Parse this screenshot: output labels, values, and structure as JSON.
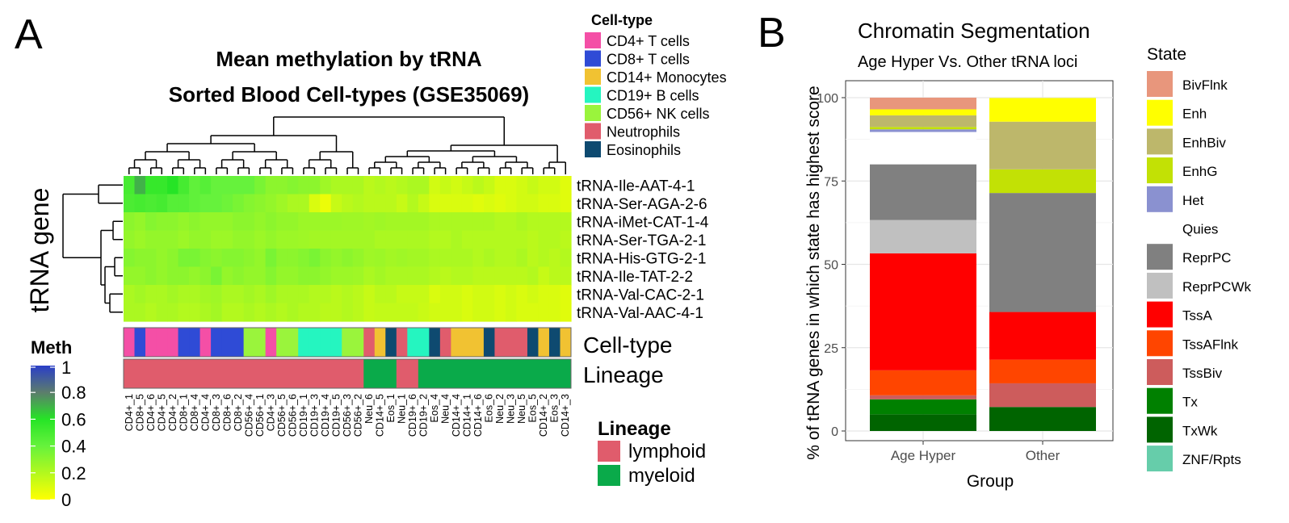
{
  "panel_a": {
    "letter": "A",
    "title_line1": "Mean methylation by tRNA",
    "title_line2": "Sorted Blood Cell-types (GSE35069)",
    "y_axis_title": "tRNA gene",
    "celltype_legend": {
      "title": "Cell-type",
      "items": [
        {
          "label": "CD4+ T cells",
          "color": "#f44fa6"
        },
        {
          "label": "CD8+ T cells",
          "color": "#2f4bd6"
        },
        {
          "label": "CD14+ Monocytes",
          "color": "#f1c232"
        },
        {
          "label": "CD19+ B cells",
          "color": "#25f5c0"
        },
        {
          "label": "CD56+ NK cells",
          "color": "#9af43c"
        },
        {
          "label": "Neutrophils",
          "color": "#e05c6c"
        },
        {
          "label": "Eosinophils",
          "color": "#0e4a70"
        }
      ]
    },
    "meth_legend": {
      "title": "Meth",
      "ticks": [
        "1",
        "0.8",
        "0.6",
        "0.4",
        "0.2",
        "0"
      ]
    },
    "lineage_legend": {
      "title": "Lineage",
      "items": [
        {
          "label": "lymphoid",
          "color": "#e05c6c"
        },
        {
          "label": "myeloid",
          "color": "#0aaa4a"
        }
      ]
    },
    "annotation_labels": {
      "celltype": "Cell-type",
      "lineage": "Lineage"
    }
  },
  "panel_b": {
    "letter": "B",
    "title": "Chromatin Segmentation",
    "subtitle": "Age Hyper Vs. Other tRNA loci",
    "legend_title": "State"
  },
  "chart_data": [
    {
      "type": "heatmap",
      "title": "Mean methylation by tRNA\nSorted Blood Cell-types (GSE35069)",
      "ylabel": "tRNA gene",
      "rows": [
        "tRNA-Ile-AAT-4-1",
        "tRNA-Ser-AGA-2-6",
        "tRNA-iMet-CAT-1-4",
        "tRNA-Ser-TGA-2-1",
        "tRNA-His-GTG-2-1",
        "tRNA-Ile-TAT-2-2",
        "tRNA-Val-CAC-2-1",
        "tRNA-Val-AAC-4-1"
      ],
      "columns": [
        "CD4+_1",
        "CD8+_5",
        "CD4+_6",
        "CD4+_5",
        "CD4+_2",
        "CD8+_1",
        "CD8+_4",
        "CD4+_4",
        "CD8+_3",
        "CD8+_6",
        "CD8+_2",
        "CD56+_4",
        "CD56+_1",
        "CD4+_3",
        "CD56+_5",
        "CD56+_6",
        "CD19+_1",
        "CD19+_3",
        "CD19+_4",
        "CD19+_5",
        "CD56+_3",
        "CD56+_2",
        "Neu_6",
        "CD14+_5",
        "Eos_1",
        "Neu_1",
        "CD19+_6",
        "CD19+_2",
        "Eos_4",
        "Neu_4",
        "CD14+_4",
        "CD14+_1",
        "CD14+_6",
        "Eos_6",
        "Neu_2",
        "Neu_3",
        "Neu_5",
        "Eos_5",
        "CD14+_2",
        "Eos_3",
        "CD14+_3"
      ],
      "column_celltypes": [
        "CD4+ T cells",
        "CD8+ T cells",
        "CD4+ T cells",
        "CD4+ T cells",
        "CD4+ T cells",
        "CD8+ T cells",
        "CD8+ T cells",
        "CD4+ T cells",
        "CD8+ T cells",
        "CD8+ T cells",
        "CD8+ T cells",
        "CD56+ NK cells",
        "CD56+ NK cells",
        "CD4+ T cells",
        "CD56+ NK cells",
        "CD56+ NK cells",
        "CD19+ B cells",
        "CD19+ B cells",
        "CD19+ B cells",
        "CD19+ B cells",
        "CD56+ NK cells",
        "CD56+ NK cells",
        "Neutrophils",
        "CD14+ Monocytes",
        "Eosinophils",
        "Neutrophils",
        "CD19+ B cells",
        "CD19+ B cells",
        "Eosinophils",
        "Neutrophils",
        "CD14+ Monocytes",
        "CD14+ Monocytes",
        "CD14+ Monocytes",
        "Eosinophils",
        "Neutrophils",
        "Neutrophils",
        "Neutrophils",
        "Eosinophils",
        "CD14+ Monocytes",
        "Eosinophils",
        "CD14+ Monocytes"
      ],
      "column_lineage": [
        "lymphoid",
        "lymphoid",
        "lymphoid",
        "lymphoid",
        "lymphoid",
        "lymphoid",
        "lymphoid",
        "lymphoid",
        "lymphoid",
        "lymphoid",
        "lymphoid",
        "lymphoid",
        "lymphoid",
        "lymphoid",
        "lymphoid",
        "lymphoid",
        "lymphoid",
        "lymphoid",
        "lymphoid",
        "lymphoid",
        "lymphoid",
        "lymphoid",
        "myeloid",
        "myeloid",
        "myeloid",
        "lymphoid",
        "lymphoid",
        "myeloid",
        "myeloid",
        "myeloid",
        "myeloid",
        "myeloid",
        "myeloid",
        "myeloid",
        "myeloid",
        "myeloid",
        "myeloid",
        "myeloid",
        "myeloid",
        "myeloid",
        "myeloid"
      ],
      "values": [
        [
          0.5,
          0.7,
          0.55,
          0.55,
          0.6,
          0.5,
          0.42,
          0.45,
          0.4,
          0.4,
          0.4,
          0.4,
          0.35,
          0.3,
          0.3,
          0.32,
          0.3,
          0.3,
          0.25,
          0.22,
          0.22,
          0.22,
          0.18,
          0.2,
          0.18,
          0.2,
          0.22,
          0.22,
          0.12,
          0.15,
          0.12,
          0.15,
          0.18,
          0.15,
          0.1,
          0.1,
          0.12,
          0.15,
          0.12,
          0.12,
          0.08
        ],
        [
          0.48,
          0.5,
          0.48,
          0.5,
          0.45,
          0.45,
          0.42,
          0.4,
          0.4,
          0.38,
          0.35,
          0.32,
          0.3,
          0.28,
          0.25,
          0.22,
          0.22,
          0.1,
          0.05,
          0.15,
          0.18,
          0.2,
          0.18,
          0.18,
          0.18,
          0.15,
          0.2,
          0.15,
          0.1,
          0.1,
          0.1,
          0.1,
          0.08,
          0.1,
          0.08,
          0.1,
          0.12,
          0.12,
          0.1,
          0.1,
          0.08
        ],
        [
          0.3,
          0.28,
          0.32,
          0.3,
          0.3,
          0.28,
          0.3,
          0.28,
          0.28,
          0.28,
          0.3,
          0.3,
          0.28,
          0.3,
          0.28,
          0.28,
          0.26,
          0.26,
          0.26,
          0.26,
          0.25,
          0.25,
          0.24,
          0.25,
          0.24,
          0.24,
          0.24,
          0.24,
          0.22,
          0.22,
          0.22,
          0.22,
          0.22,
          0.22,
          0.2,
          0.2,
          0.22,
          0.2,
          0.2,
          0.2,
          0.2
        ],
        [
          0.28,
          0.26,
          0.28,
          0.28,
          0.28,
          0.26,
          0.28,
          0.28,
          0.26,
          0.26,
          0.28,
          0.28,
          0.26,
          0.28,
          0.26,
          0.26,
          0.25,
          0.24,
          0.24,
          0.24,
          0.24,
          0.24,
          0.24,
          0.22,
          0.22,
          0.22,
          0.22,
          0.22,
          0.2,
          0.2,
          0.22,
          0.2,
          0.2,
          0.2,
          0.2,
          0.2,
          0.2,
          0.18,
          0.2,
          0.2,
          0.18
        ],
        [
          0.32,
          0.3,
          0.3,
          0.28,
          0.3,
          0.35,
          0.35,
          0.32,
          0.3,
          0.32,
          0.32,
          0.3,
          0.28,
          0.35,
          0.3,
          0.3,
          0.32,
          0.35,
          0.3,
          0.28,
          0.3,
          0.28,
          0.25,
          0.26,
          0.24,
          0.25,
          0.24,
          0.24,
          0.22,
          0.22,
          0.22,
          0.22,
          0.2,
          0.22,
          0.2,
          0.2,
          0.22,
          0.18,
          0.2,
          0.18,
          0.2
        ],
        [
          0.28,
          0.28,
          0.3,
          0.28,
          0.3,
          0.3,
          0.28,
          0.3,
          0.35,
          0.28,
          0.3,
          0.28,
          0.28,
          0.32,
          0.28,
          0.28,
          0.3,
          0.3,
          0.28,
          0.26,
          0.26,
          0.25,
          0.22,
          0.24,
          0.22,
          0.22,
          0.22,
          0.22,
          0.2,
          0.18,
          0.2,
          0.2,
          0.18,
          0.18,
          0.18,
          0.18,
          0.18,
          0.2,
          0.15,
          0.18,
          0.18
        ],
        [
          0.22,
          0.24,
          0.22,
          0.22,
          0.24,
          0.22,
          0.22,
          0.24,
          0.25,
          0.22,
          0.22,
          0.24,
          0.22,
          0.25,
          0.22,
          0.22,
          0.22,
          0.2,
          0.2,
          0.18,
          0.2,
          0.18,
          0.15,
          0.18,
          0.18,
          0.15,
          0.15,
          0.15,
          0.1,
          0.12,
          0.12,
          0.1,
          0.12,
          0.12,
          0.1,
          0.12,
          0.1,
          0.12,
          0.1,
          0.1,
          0.08
        ],
        [
          0.22,
          0.22,
          0.2,
          0.22,
          0.22,
          0.2,
          0.2,
          0.22,
          0.24,
          0.2,
          0.2,
          0.22,
          0.2,
          0.22,
          0.2,
          0.22,
          0.2,
          0.2,
          0.18,
          0.18,
          0.2,
          0.18,
          0.15,
          0.16,
          0.16,
          0.16,
          0.16,
          0.14,
          0.12,
          0.12,
          0.12,
          0.1,
          0.12,
          0.12,
          0.1,
          0.12,
          0.1,
          0.1,
          0.1,
          0.1,
          0.08
        ]
      ],
      "color_scale": {
        "name": "Meth",
        "min": 0,
        "max": 1,
        "stops": [
          [
            0,
            "#ffff00"
          ],
          [
            0.4,
            "#66f23c"
          ],
          [
            0.6,
            "#26e426"
          ],
          [
            0.8,
            "#5c7d6c"
          ],
          [
            1,
            "#2a3ec8"
          ]
        ]
      }
    },
    {
      "type": "bar",
      "stacked": true,
      "title": "Chromatin Segmentation",
      "subtitle": "Age Hyper Vs. Other tRNA loci",
      "xlabel": "Group",
      "ylabel": "% of tRNA genes in which state has highest score",
      "categories": [
        "Age Hyper",
        "Other"
      ],
      "ylim": [
        0,
        100
      ],
      "yticks": [
        "0",
        "25",
        "50",
        "75",
        "100"
      ],
      "grid": true,
      "legend": "right",
      "series": [
        {
          "name": "BivFlnk",
          "color": "#e8967c",
          "values": [
            3.5,
            0
          ]
        },
        {
          "name": "Enh",
          "color": "#ffff00",
          "values": [
            1.8,
            7.1
          ]
        },
        {
          "name": "EnhBiv",
          "color": "#bdb76b",
          "values": [
            3.5,
            14.3
          ]
        },
        {
          "name": "EnhG",
          "color": "#c2e105",
          "values": [
            0.7,
            7.1
          ]
        },
        {
          "name": "Het",
          "color": "#8a91d0",
          "values": [
            0.8,
            0
          ]
        },
        {
          "name": "Quies",
          "color": "#ffffff",
          "values": [
            9.7,
            0
          ]
        },
        {
          "name": "ReprPC",
          "color": "#808080",
          "values": [
            16.7,
            35.7
          ]
        },
        {
          "name": "ReprPCWk",
          "color": "#c0c0c0",
          "values": [
            10,
            0
          ]
        },
        {
          "name": "TssA",
          "color": "#ff0000",
          "values": [
            35.1,
            14.3
          ]
        },
        {
          "name": "TssAFlnk",
          "color": "#ff4500",
          "values": [
            7.5,
            7.1
          ]
        },
        {
          "name": "TssBiv",
          "color": "#cd5c5c",
          "values": [
            1.2,
            7.1
          ]
        },
        {
          "name": "Tx",
          "color": "#008000",
          "values": [
            4.5,
            0
          ]
        },
        {
          "name": "TxWk",
          "color": "#006400",
          "values": [
            5.0,
            7.2
          ]
        },
        {
          "name": "ZNF/Rpts",
          "color": "#66cdaa",
          "values": [
            0,
            0
          ]
        }
      ]
    }
  ]
}
